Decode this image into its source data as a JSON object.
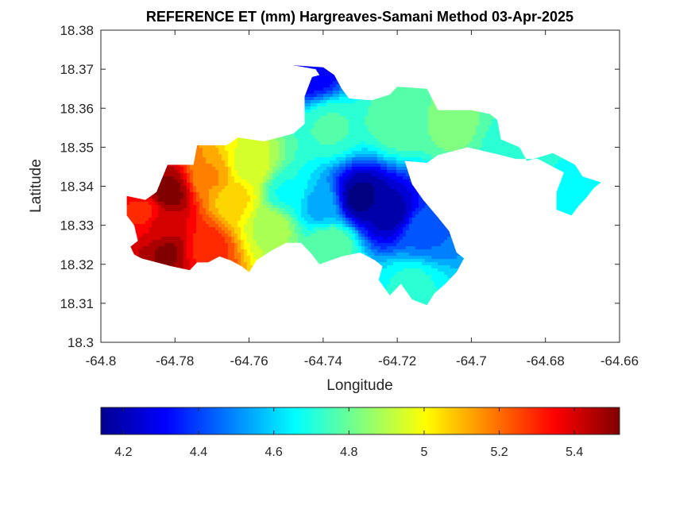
{
  "chart_data": {
    "type": "heatmap",
    "title": "REFERENCE ET (mm) Hargreaves-Samani Method  03-Apr-2025",
    "xlabel": "Longitude",
    "ylabel": "Latitude",
    "xlim": [
      -64.8,
      -64.66
    ],
    "ylim": [
      18.3,
      18.38
    ],
    "xticks": [
      -64.8,
      -64.78,
      -64.76,
      -64.74,
      -64.72,
      -64.7,
      -64.68,
      -64.66
    ],
    "xtick_labels": [
      "-64.8",
      "-64.78",
      "-64.76",
      "-64.74",
      "-64.72",
      "-64.7",
      "-64.68",
      "-64.66"
    ],
    "yticks": [
      18.3,
      18.31,
      18.32,
      18.33,
      18.34,
      18.35,
      18.36,
      18.37,
      18.38
    ],
    "ytick_labels": [
      "18.3",
      "18.31",
      "18.32",
      "18.33",
      "18.34",
      "18.35",
      "18.36",
      "18.37",
      "18.38"
    ],
    "colormap": "jet",
    "colorbar": {
      "orientation": "horizontal",
      "clim": [
        4.14,
        5.52
      ],
      "ticks": [
        4.2,
        4.4,
        4.6,
        4.8,
        5,
        5.2,
        5.4
      ],
      "tick_labels": [
        "4.2",
        "4.4",
        "4.6",
        "4.8",
        "5",
        "5.2",
        "5.4"
      ]
    },
    "grid": false,
    "value_range": [
      4.14,
      5.52
    ],
    "region_outline": [
      [
        -64.788,
        18.3365
      ],
      [
        -64.785,
        18.3385
      ],
      [
        -64.782,
        18.3455
      ],
      [
        -64.775,
        18.3455
      ],
      [
        -64.774,
        18.3505
      ],
      [
        -64.766,
        18.3505
      ],
      [
        -64.763,
        18.3525
      ],
      [
        -64.756,
        18.3515
      ],
      [
        -64.748,
        18.3535
      ],
      [
        -64.745,
        18.356
      ],
      [
        -64.745,
        18.363
      ],
      [
        -64.743,
        18.368
      ],
      [
        -64.741,
        18.3685
      ],
      [
        -64.742,
        18.37
      ],
      [
        -64.748,
        18.371
      ],
      [
        -64.74,
        18.3705
      ],
      [
        -64.737,
        18.3685
      ],
      [
        -64.735,
        18.365
      ],
      [
        -64.733,
        18.3625
      ],
      [
        -64.727,
        18.362
      ],
      [
        -64.722,
        18.3635
      ],
      [
        -64.72,
        18.3655
      ],
      [
        -64.712,
        18.365
      ],
      [
        -64.709,
        18.3595
      ],
      [
        -64.7,
        18.3595
      ],
      [
        -64.695,
        18.3585
      ],
      [
        -64.693,
        18.357
      ],
      [
        -64.692,
        18.352
      ],
      [
        -64.687,
        18.35
      ],
      [
        -64.685,
        18.3465
      ],
      [
        -64.678,
        18.3485
      ],
      [
        -64.672,
        18.3455
      ],
      [
        -64.67,
        18.3425
      ],
      [
        -64.665,
        18.341
      ],
      [
        -64.667,
        18.3395
      ],
      [
        -64.669,
        18.337
      ],
      [
        -64.671,
        18.335
      ],
      [
        -64.673,
        18.3325
      ],
      [
        -64.677,
        18.334
      ],
      [
        -64.677,
        18.3385
      ],
      [
        -64.675,
        18.3435
      ],
      [
        -64.682,
        18.347
      ],
      [
        -64.688,
        18.347
      ],
      [
        -64.692,
        18.348
      ],
      [
        -64.701,
        18.35
      ],
      [
        -64.709,
        18.348
      ],
      [
        -64.712,
        18.346
      ],
      [
        -64.718,
        18.3465
      ],
      [
        -64.716,
        18.3405
      ],
      [
        -64.713,
        18.3365
      ],
      [
        -64.709,
        18.332
      ],
      [
        -64.706,
        18.3285
      ],
      [
        -64.704,
        18.323
      ],
      [
        -64.702,
        18.3215
      ],
      [
        -64.704,
        18.318
      ],
      [
        -64.707,
        18.315
      ],
      [
        -64.71,
        18.3125
      ],
      [
        -64.712,
        18.3095
      ],
      [
        -64.716,
        18.311
      ],
      [
        -64.719,
        18.315
      ],
      [
        -64.722,
        18.312
      ],
      [
        -64.725,
        18.316
      ],
      [
        -64.724,
        18.3195
      ],
      [
        -64.726,
        18.321
      ],
      [
        -64.73,
        18.323
      ],
      [
        -64.735,
        18.322
      ],
      [
        -64.741,
        18.32
      ],
      [
        -64.743,
        18.3225
      ],
      [
        -64.746,
        18.3255
      ],
      [
        -64.75,
        18.3255
      ],
      [
        -64.754,
        18.3235
      ],
      [
        -64.758,
        18.321
      ],
      [
        -64.76,
        18.318
      ],
      [
        -64.762,
        18.3195
      ],
      [
        -64.765,
        18.321
      ],
      [
        -64.768,
        18.322
      ],
      [
        -64.771,
        18.3205
      ],
      [
        -64.774,
        18.3205
      ],
      [
        -64.776,
        18.3185
      ],
      [
        -64.781,
        18.3195
      ],
      [
        -64.785,
        18.3205
      ],
      [
        -64.789,
        18.3215
      ],
      [
        -64.791,
        18.3225
      ],
      [
        -64.792,
        18.3245
      ],
      [
        -64.79,
        18.326
      ],
      [
        -64.791,
        18.33
      ],
      [
        -64.793,
        18.3325
      ],
      [
        -64.793,
        18.3375
      ]
    ],
    "field_centers": [
      {
        "lon": -64.73,
        "lat": 18.337,
        "value": 4.15
      },
      {
        "lon": -64.722,
        "lat": 18.333,
        "value": 4.2
      },
      {
        "lon": -64.713,
        "lat": 18.328,
        "value": 4.45
      },
      {
        "lon": -64.741,
        "lat": 18.335,
        "value": 4.55
      },
      {
        "lon": -64.743,
        "lat": 18.3695,
        "value": 4.3
      },
      {
        "lon": -64.738,
        "lat": 18.355,
        "value": 4.75
      },
      {
        "lon": -64.72,
        "lat": 18.356,
        "value": 4.78
      },
      {
        "lon": -64.705,
        "lat": 18.356,
        "value": 4.82
      },
      {
        "lon": -64.69,
        "lat": 18.35,
        "value": 4.72
      },
      {
        "lon": -64.672,
        "lat": 18.339,
        "value": 4.68
      },
      {
        "lon": -64.716,
        "lat": 18.315,
        "value": 4.7
      },
      {
        "lon": -64.738,
        "lat": 18.325,
        "value": 4.8
      },
      {
        "lon": -64.75,
        "lat": 18.338,
        "value": 4.68
      },
      {
        "lon": -64.754,
        "lat": 18.33,
        "value": 4.9
      },
      {
        "lon": -64.76,
        "lat": 18.345,
        "value": 4.95
      },
      {
        "lon": -64.764,
        "lat": 18.337,
        "value": 5.05
      },
      {
        "lon": -64.77,
        "lat": 18.342,
        "value": 5.15
      },
      {
        "lon": -64.772,
        "lat": 18.324,
        "value": 5.3
      },
      {
        "lon": -64.782,
        "lat": 18.338,
        "value": 5.52
      },
      {
        "lon": -64.784,
        "lat": 18.33,
        "value": 5.4
      },
      {
        "lon": -64.782,
        "lat": 18.323,
        "value": 5.5
      },
      {
        "lon": -64.788,
        "lat": 18.333,
        "value": 5.3
      }
    ]
  }
}
